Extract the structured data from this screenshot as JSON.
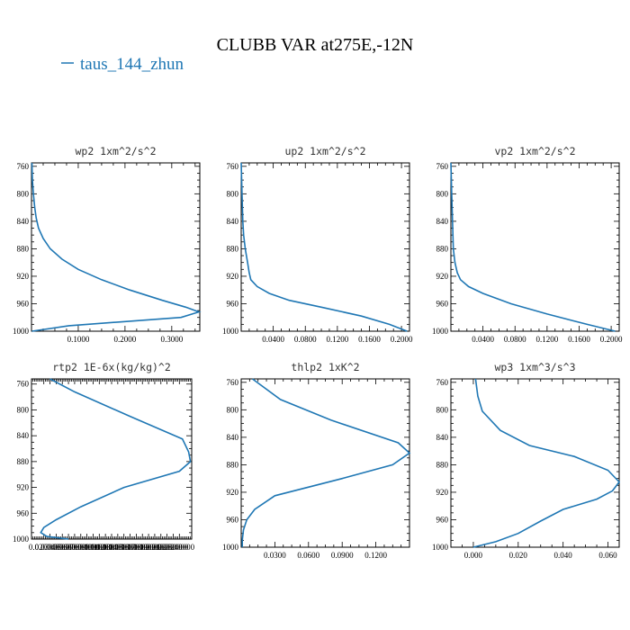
{
  "figure": {
    "title": "CLUBB VAR at275E,-12N",
    "legend": {
      "label": "taus_144_zhun",
      "color": "#1f77b4"
    }
  },
  "chart_data": [
    {
      "type": "line",
      "title": "wp2   1xm^2/s^2",
      "xlim": [
        0.0,
        0.36
      ],
      "ylim": [
        1000,
        755
      ],
      "xticks": [
        0.1,
        0.2,
        0.3
      ],
      "xtick_labels": [
        "0.1000",
        "0.2000",
        "0.3000"
      ],
      "yticks": [
        760,
        800,
        840,
        880,
        920,
        960,
        1000
      ],
      "ytick_labels": [
        "760",
        "800",
        "840",
        "880",
        "920",
        "960",
        "1000"
      ],
      "series": [
        {
          "color": "#1f77b4",
          "x": [
            0.001,
            0.002,
            0.004,
            0.007,
            0.01,
            0.015,
            0.025,
            0.04,
            0.065,
            0.1,
            0.15,
            0.21,
            0.28,
            0.33,
            0.358,
            0.32,
            0.2,
            0.08,
            0.001
          ],
          "y": [
            755,
            780,
            800,
            820,
            835,
            850,
            865,
            880,
            895,
            910,
            925,
            940,
            955,
            965,
            972,
            980,
            986,
            992,
            1000
          ]
        }
      ]
    },
    {
      "type": "line",
      "title": "up2   1xm^2/s^2",
      "xlim": [
        0.0,
        0.21
      ],
      "ylim": [
        1000,
        755
      ],
      "xticks": [
        0.04,
        0.08,
        0.12,
        0.16,
        0.2
      ],
      "xtick_labels": [
        "0.0400",
        "0.0800",
        "0.1200",
        "0.1600",
        "0.2000"
      ],
      "yticks": [
        760,
        800,
        840,
        880,
        920,
        960,
        1000
      ],
      "ytick_labels": [
        "760",
        "800",
        "840",
        "880",
        "920",
        "960",
        "1000"
      ],
      "series": [
        {
          "color": "#1f77b4",
          "x": [
            0.0,
            0.001,
            0.002,
            0.003,
            0.005,
            0.008,
            0.01,
            0.012,
            0.02,
            0.035,
            0.06,
            0.1,
            0.15,
            0.185,
            0.207
          ],
          "y": [
            755,
            800,
            840,
            860,
            880,
            900,
            915,
            925,
            935,
            945,
            955,
            965,
            978,
            990,
            1000
          ]
        }
      ]
    },
    {
      "type": "line",
      "title": "vp2   1xm^2/s^2",
      "xlim": [
        0.0,
        0.21
      ],
      "ylim": [
        1000,
        755
      ],
      "xticks": [
        0.04,
        0.08,
        0.12,
        0.16,
        0.2
      ],
      "xtick_labels": [
        "0.0400",
        "0.0800",
        "0.1200",
        "0.1600",
        "0.2000"
      ],
      "yticks": [
        760,
        800,
        840,
        880,
        920,
        960,
        1000
      ],
      "ytick_labels": [
        "760",
        "800",
        "840",
        "880",
        "920",
        "960",
        "1000"
      ],
      "series": [
        {
          "color": "#1f77b4",
          "x": [
            0.0,
            0.001,
            0.002,
            0.003,
            0.005,
            0.008,
            0.012,
            0.022,
            0.04,
            0.075,
            0.12,
            0.17,
            0.205
          ],
          "y": [
            755,
            800,
            840,
            880,
            900,
            915,
            925,
            935,
            945,
            960,
            975,
            990,
            1000
          ]
        }
      ]
    },
    {
      "type": "line",
      "title": "rtp2   1E-6x(kg/kg)^2",
      "xlim": [
        0.0,
        0.26
      ],
      "ylim": [
        1000,
        752
      ],
      "xticks": [
        0.02,
        0.03,
        0.04,
        0.05,
        0.06,
        0.07,
        0.08,
        0.09,
        0.1,
        0.11,
        0.12,
        0.13,
        0.14,
        0.15,
        0.16,
        0.17,
        0.18,
        0.19,
        0.2,
        0.21,
        0.22,
        0.23,
        0.24
      ],
      "xtick_labels": [
        "0.020000",
        "0.030000",
        "0.040000",
        "0.050000",
        "0.060000",
        "0.070000",
        "0.080000",
        "0.090000",
        "0.100000",
        "0.110000",
        "0.120000",
        "0.130000",
        "0.140000",
        "0.150000",
        "0.160000",
        "0.170000",
        "0.180000",
        "0.190000",
        "0.200000",
        "0.210000",
        "0.220000",
        "0.230000",
        "0.240000"
      ],
      "yticks": [
        760,
        800,
        840,
        880,
        920,
        960,
        1000
      ],
      "ytick_labels": [
        "760",
        "800",
        "840",
        "880",
        "920",
        "960",
        "1000"
      ],
      "series": [
        {
          "color": "#1f77b4",
          "x": [
            0.03,
            0.07,
            0.16,
            0.245,
            0.255,
            0.258,
            0.24,
            0.15,
            0.08,
            0.04,
            0.02,
            0.015,
            0.025,
            0.06
          ],
          "y": [
            752,
            772,
            810,
            845,
            865,
            880,
            895,
            920,
            950,
            970,
            982,
            990,
            996,
            1000
          ]
        }
      ]
    },
    {
      "type": "line",
      "title": "thlp2   1xK^2",
      "xlim": [
        0.0,
        0.15
      ],
      "ylim": [
        1000,
        755
      ],
      "xticks": [
        0.03,
        0.06,
        0.09,
        0.12
      ],
      "xtick_labels": [
        "0.0300",
        "0.0600",
        "0.0900",
        "0.1200"
      ],
      "yticks": [
        760,
        800,
        840,
        880,
        920,
        960,
        1000
      ],
      "ytick_labels": [
        "760",
        "800",
        "840",
        "880",
        "920",
        "960",
        "1000"
      ],
      "series": [
        {
          "color": "#1f77b4",
          "x": [
            0.01,
            0.035,
            0.08,
            0.14,
            0.15,
            0.135,
            0.09,
            0.03,
            0.012,
            0.005,
            0.002,
            0.001,
            0.001
          ],
          "y": [
            755,
            785,
            815,
            848,
            863,
            880,
            900,
            925,
            945,
            960,
            975,
            990,
            1000
          ]
        }
      ]
    },
    {
      "type": "line",
      "title": "wp3   1xm^3/s^3",
      "xlim": [
        -0.01,
        0.065
      ],
      "ylim": [
        1000,
        755
      ],
      "xticks": [
        0.0,
        0.02,
        0.04,
        0.06
      ],
      "xtick_labels": [
        "0.000",
        "0.020",
        "0.040",
        "0.060"
      ],
      "yticks": [
        760,
        800,
        840,
        880,
        920,
        960,
        1000
      ],
      "ytick_labels": [
        "760",
        "800",
        "840",
        "880",
        "920",
        "960",
        "1000"
      ],
      "series": [
        {
          "color": "#1f77b4",
          "x": [
            0.001,
            0.002,
            0.004,
            0.012,
            0.025,
            0.045,
            0.06,
            0.065,
            0.062,
            0.055,
            0.04,
            0.03,
            0.02,
            0.01,
            0.0
          ],
          "y": [
            755,
            780,
            802,
            830,
            852,
            868,
            888,
            905,
            918,
            930,
            945,
            962,
            980,
            992,
            1000
          ]
        }
      ]
    }
  ]
}
